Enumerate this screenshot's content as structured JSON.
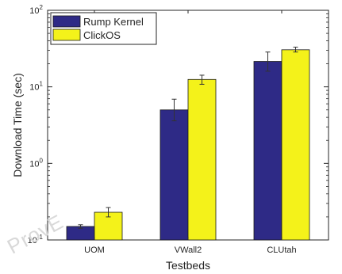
{
  "watermark": "ProvE",
  "chart_data": {
    "type": "bar",
    "title": "",
    "xlabel": "Testbeds",
    "ylabel": "Download Time (sec)",
    "yscale": "log",
    "ylim": [
      0.1,
      100
    ],
    "yticks": [
      {
        "value": 0.1,
        "base": "10",
        "exp": "-1"
      },
      {
        "value": 1,
        "base": "10",
        "exp": "0"
      },
      {
        "value": 10,
        "base": "10",
        "exp": "1"
      },
      {
        "value": 100,
        "base": "10",
        "exp": "2"
      }
    ],
    "categories": [
      "UOM",
      "VWall2",
      "CLUtah"
    ],
    "series": [
      {
        "name": "Rump Kernel",
        "color": "#2e2a86",
        "values": [
          0.15,
          5.0,
          21.5
        ],
        "err_low": [
          0.142,
          3.6,
          16.0
        ],
        "err_high": [
          0.158,
          6.9,
          28.5
        ]
      },
      {
        "name": "ClickOS",
        "color": "#f4f21a",
        "values": [
          0.23,
          12.5,
          30.5
        ],
        "err_low": [
          0.2,
          10.8,
          28.5
        ],
        "err_high": [
          0.265,
          14.2,
          33.0
        ]
      }
    ],
    "legend": "top-left",
    "grid": false
  }
}
